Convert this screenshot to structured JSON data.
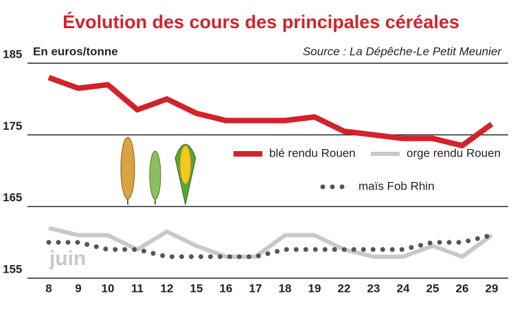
{
  "chart_data": {
    "type": "line",
    "title": "Évolution des cours des principales céréales",
    "y_label": "En euros/tonne",
    "source": "Source : La Dépêche-Le Petit Meunier",
    "annotation": "juin",
    "categories": [
      "8",
      "9",
      "10",
      "11",
      "12",
      "15",
      "16",
      "17",
      "18",
      "19",
      "22",
      "23",
      "24",
      "25",
      "26",
      "29"
    ],
    "series": [
      {
        "name": "blé rendu Rouen",
        "color": "#d2232a",
        "style": "solid",
        "values": [
          183,
          181.5,
          182,
          178.5,
          180,
          178,
          177,
          177,
          177,
          177.5,
          175.5,
          175,
          174.5,
          174.5,
          173.5,
          176.5
        ]
      },
      {
        "name": "orge rendu Rouen",
        "color": "#c8c8c8",
        "style": "solid",
        "values": [
          162,
          161,
          161,
          159,
          161.5,
          159.5,
          158,
          158,
          161,
          161,
          159,
          158,
          158,
          159.5,
          158,
          161
        ]
      },
      {
        "name": "maïs Fob Rhin",
        "color": "#555555",
        "style": "dotted",
        "values": [
          160,
          160,
          159,
          159,
          158,
          158,
          158,
          158,
          159,
          159,
          159,
          159,
          159,
          160,
          160,
          161
        ]
      }
    ],
    "ylim": [
      155,
      185
    ],
    "yticks": [
      155,
      165,
      175,
      185
    ],
    "grid": true
  }
}
